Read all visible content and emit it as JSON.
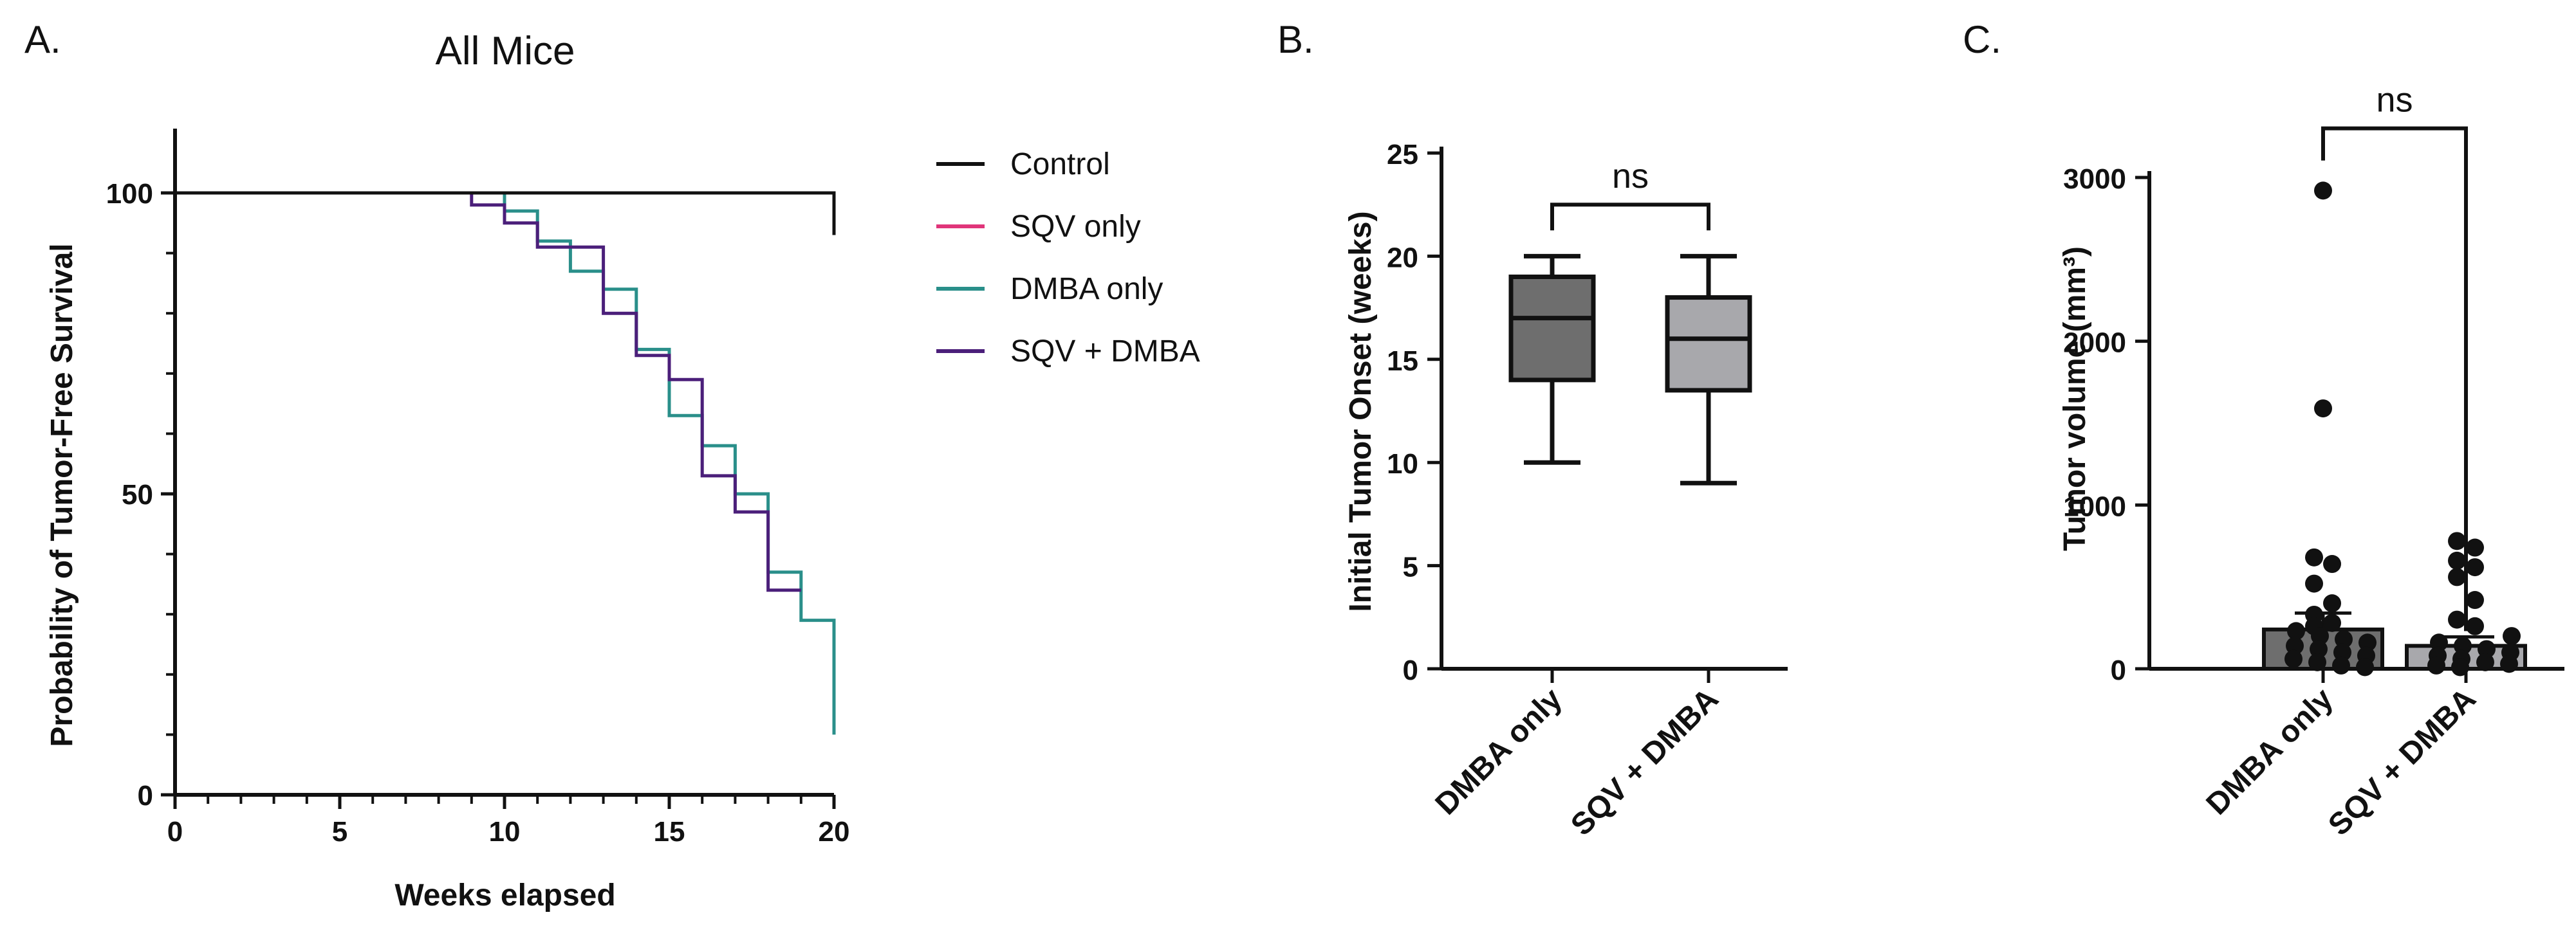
{
  "chart_data": [
    {
      "panel": "A.",
      "type": "line",
      "title": "All Mice",
      "xlabel": "Weeks elapsed",
      "ylabel": "Probability of Tumor-Free Survival",
      "xlim": [
        0,
        20
      ],
      "ylim": [
        0,
        100
      ],
      "xticks": [
        0,
        5,
        10,
        15,
        20
      ],
      "yticks": [
        0,
        50,
        100
      ],
      "legend": "right",
      "series": [
        {
          "name": "Control",
          "color": "#111111",
          "step": true,
          "points": [
            [
              0,
              100
            ],
            [
              20,
              100
            ],
            [
              20,
              93
            ]
          ]
        },
        {
          "name": "SQV only",
          "color": "#e0357a",
          "step": true,
          "points": [
            [
              0,
              100
            ],
            [
              20,
              100
            ]
          ]
        },
        {
          "name": "DMBA only",
          "color": "#2a8f8a",
          "step": true,
          "points": [
            [
              0,
              100
            ],
            [
              10,
              100
            ],
            [
              10,
              97
            ],
            [
              11,
              97
            ],
            [
              11,
              92
            ],
            [
              12,
              92
            ],
            [
              12,
              87
            ],
            [
              13,
              87
            ],
            [
              13,
              84
            ],
            [
              14,
              84
            ],
            [
              14,
              74
            ],
            [
              15,
              74
            ],
            [
              15,
              63
            ],
            [
              16,
              63
            ],
            [
              16,
              58
            ],
            [
              17,
              58
            ],
            [
              17,
              50
            ],
            [
              18,
              50
            ],
            [
              18,
              37
            ],
            [
              19,
              37
            ],
            [
              19,
              29
            ],
            [
              20,
              29
            ],
            [
              20,
              10
            ]
          ]
        },
        {
          "name": "SQV + DMBA",
          "color": "#4b1f7a",
          "step": true,
          "points": [
            [
              0,
              100
            ],
            [
              9,
              100
            ],
            [
              9,
              98
            ],
            [
              10,
              98
            ],
            [
              10,
              95
            ],
            [
              11,
              95
            ],
            [
              11,
              91
            ],
            [
              13,
              91
            ],
            [
              13,
              80
            ],
            [
              14,
              80
            ],
            [
              14,
              73
            ],
            [
              15,
              73
            ],
            [
              15,
              69
            ],
            [
              16,
              69
            ],
            [
              16,
              53
            ],
            [
              17,
              53
            ],
            [
              17,
              47
            ],
            [
              18,
              47
            ],
            [
              18,
              34
            ],
            [
              19,
              34
            ]
          ]
        }
      ]
    },
    {
      "panel": "B.",
      "type": "box",
      "ylabel": "Initial Tumor Onset (weeks)",
      "ylim": [
        0,
        25
      ],
      "yticks": [
        0,
        5,
        10,
        15,
        20,
        25
      ],
      "categories": [
        "DMBA only",
        "SQV + DMBA"
      ],
      "boxes": [
        {
          "name": "DMBA only",
          "min": 10,
          "q1": 14,
          "median": 17,
          "q3": 19,
          "max": 20,
          "color": "#6e6e6e"
        },
        {
          "name": "SQV + DMBA",
          "min": 9,
          "q1": 13.5,
          "median": 16,
          "q3": 18,
          "max": 20,
          "color": "#a8a8ac"
        }
      ],
      "significance": {
        "between": [
          0,
          1
        ],
        "label": "ns",
        "y": 22.5
      }
    },
    {
      "panel": "C.",
      "type": "bar",
      "ylabel": "Tumor volume (mm³)",
      "ylim": [
        0,
        3000
      ],
      "yticks": [
        0,
        1000,
        2000,
        3000
      ],
      "categories": [
        "DMBA only",
        "SQV + DMBA"
      ],
      "values": [
        240,
        140
      ],
      "errors": [
        100,
        55
      ],
      "colors": [
        "#6e6e6e",
        "#a8a8ac"
      ],
      "points": [
        [
          2920,
          1590,
          680,
          640,
          520,
          400,
          330,
          280,
          260,
          230,
          200,
          180,
          160,
          140,
          120,
          100,
          80,
          60,
          40,
          20,
          10
        ],
        [
          780,
          740,
          660,
          620,
          560,
          420,
          300,
          260,
          200,
          160,
          140,
          120,
          100,
          80,
          60,
          40,
          30,
          20,
          10
        ]
      ],
      "significance": {
        "between": [
          0,
          1
        ],
        "label": "ns",
        "y": 3300
      }
    }
  ]
}
